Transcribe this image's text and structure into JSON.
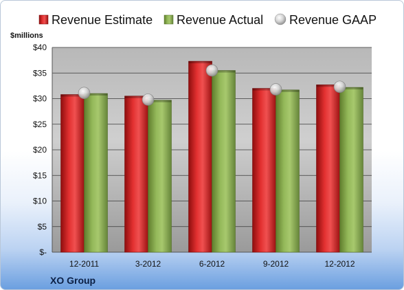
{
  "chart_data": {
    "type": "bar",
    "company": "XO Group",
    "unit_label": "$millions",
    "categories": [
      "12-2011",
      "3-2012",
      "6-2012",
      "9-2012",
      "12-2012"
    ],
    "series": [
      {
        "name": "Revenue Estimate",
        "kind": "bar",
        "color": "#d42020",
        "values": [
          30.8,
          30.5,
          37.3,
          32.0,
          32.7
        ]
      },
      {
        "name": "Revenue Actual",
        "kind": "bar",
        "color": "#8aad4e",
        "values": [
          31.0,
          29.7,
          35.5,
          31.7,
          32.2
        ]
      },
      {
        "name": "Revenue GAAP",
        "kind": "marker",
        "color": "#b8b8b8",
        "values": [
          31.1,
          29.8,
          35.5,
          31.8,
          32.3
        ]
      }
    ],
    "ylim": [
      0,
      40
    ],
    "yticks": [
      0,
      5,
      10,
      15,
      20,
      25,
      30,
      35,
      40
    ],
    "ytick_labels": [
      "$-",
      "$5",
      "$10",
      "$15",
      "$20",
      "$25",
      "$30",
      "$35",
      "$40"
    ],
    "grid": true,
    "legend_position": "top"
  }
}
